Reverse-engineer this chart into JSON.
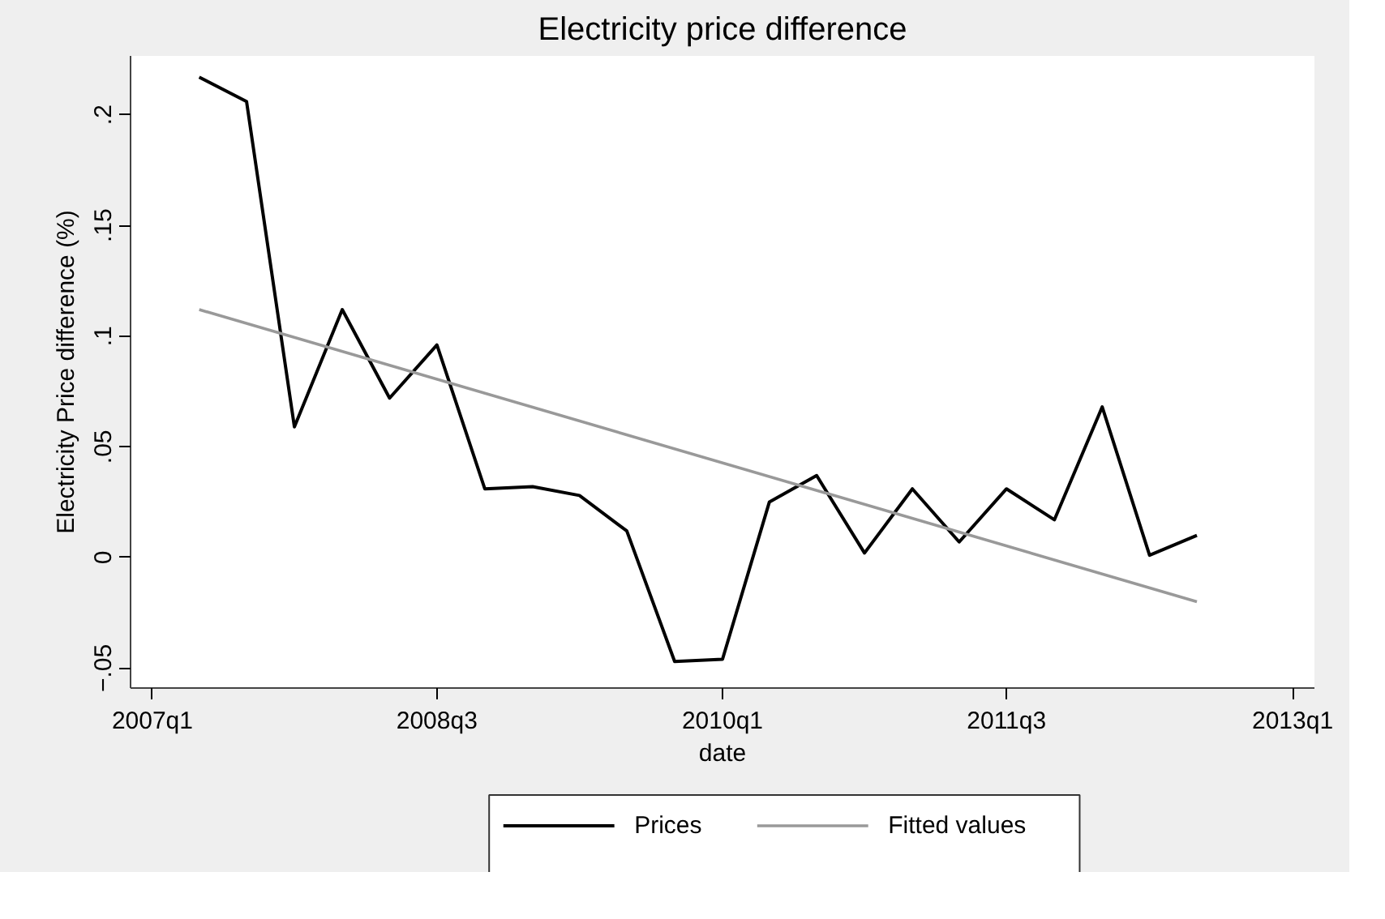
{
  "chart_data": {
    "type": "line",
    "title": "Electricity price difference",
    "xlabel": "date",
    "ylabel": "Electricity Price difference (%)",
    "xlim": [
      "2006-11-20",
      "2013-02-12"
    ],
    "ylim": [
      -0.059,
      0.2266
    ],
    "xticks": [
      {
        "value": "2007-01-01",
        "label": "2007q1"
      },
      {
        "value": "2008-07-01",
        "label": "2008q3"
      },
      {
        "value": "2010-01-01",
        "label": "2010q1"
      },
      {
        "value": "2011-07-01",
        "label": "2011q3"
      },
      {
        "value": "2013-01-01",
        "label": "2013q1"
      }
    ],
    "yticks": [
      {
        "value": -0.05,
        "label": "−.05"
      },
      {
        "value": 0,
        "label": "0"
      },
      {
        "value": 0.05,
        "label": ".05"
      },
      {
        "value": 0.1,
        "label": ".1"
      },
      {
        "value": 0.15,
        "label": ".15"
      },
      {
        "value": 0.2,
        "label": ".2"
      }
    ],
    "legend": "bottom",
    "line_style": "solid",
    "series": [
      {
        "name": "Prices",
        "color": "#000000",
        "x": [
          "2007-04-01",
          "2007-07-01",
          "2007-10-01",
          "2008-01-01",
          "2008-04-01",
          "2008-07-01",
          "2008-10-01",
          "2009-01-01",
          "2009-04-01",
          "2009-07-01",
          "2009-10-01",
          "2010-01-01",
          "2010-04-01",
          "2010-07-01",
          "2010-10-01",
          "2011-01-01",
          "2011-04-01",
          "2011-07-01",
          "2011-10-01",
          "2012-01-01",
          "2012-04-01",
          "2012-07-01"
        ],
        "values": [
          0.217,
          0.206,
          0.059,
          0.112,
          0.072,
          0.096,
          0.031,
          0.032,
          0.028,
          0.012,
          -0.047,
          -0.046,
          0.025,
          0.037,
          0.002,
          0.031,
          0.007,
          0.031,
          0.017,
          0.068,
          0.001,
          0.01
        ]
      },
      {
        "name": "Fitted values",
        "color": "#999999",
        "x": [
          "2007-04-01",
          "2012-07-01"
        ],
        "values": [
          0.112,
          -0.02
        ]
      }
    ]
  }
}
